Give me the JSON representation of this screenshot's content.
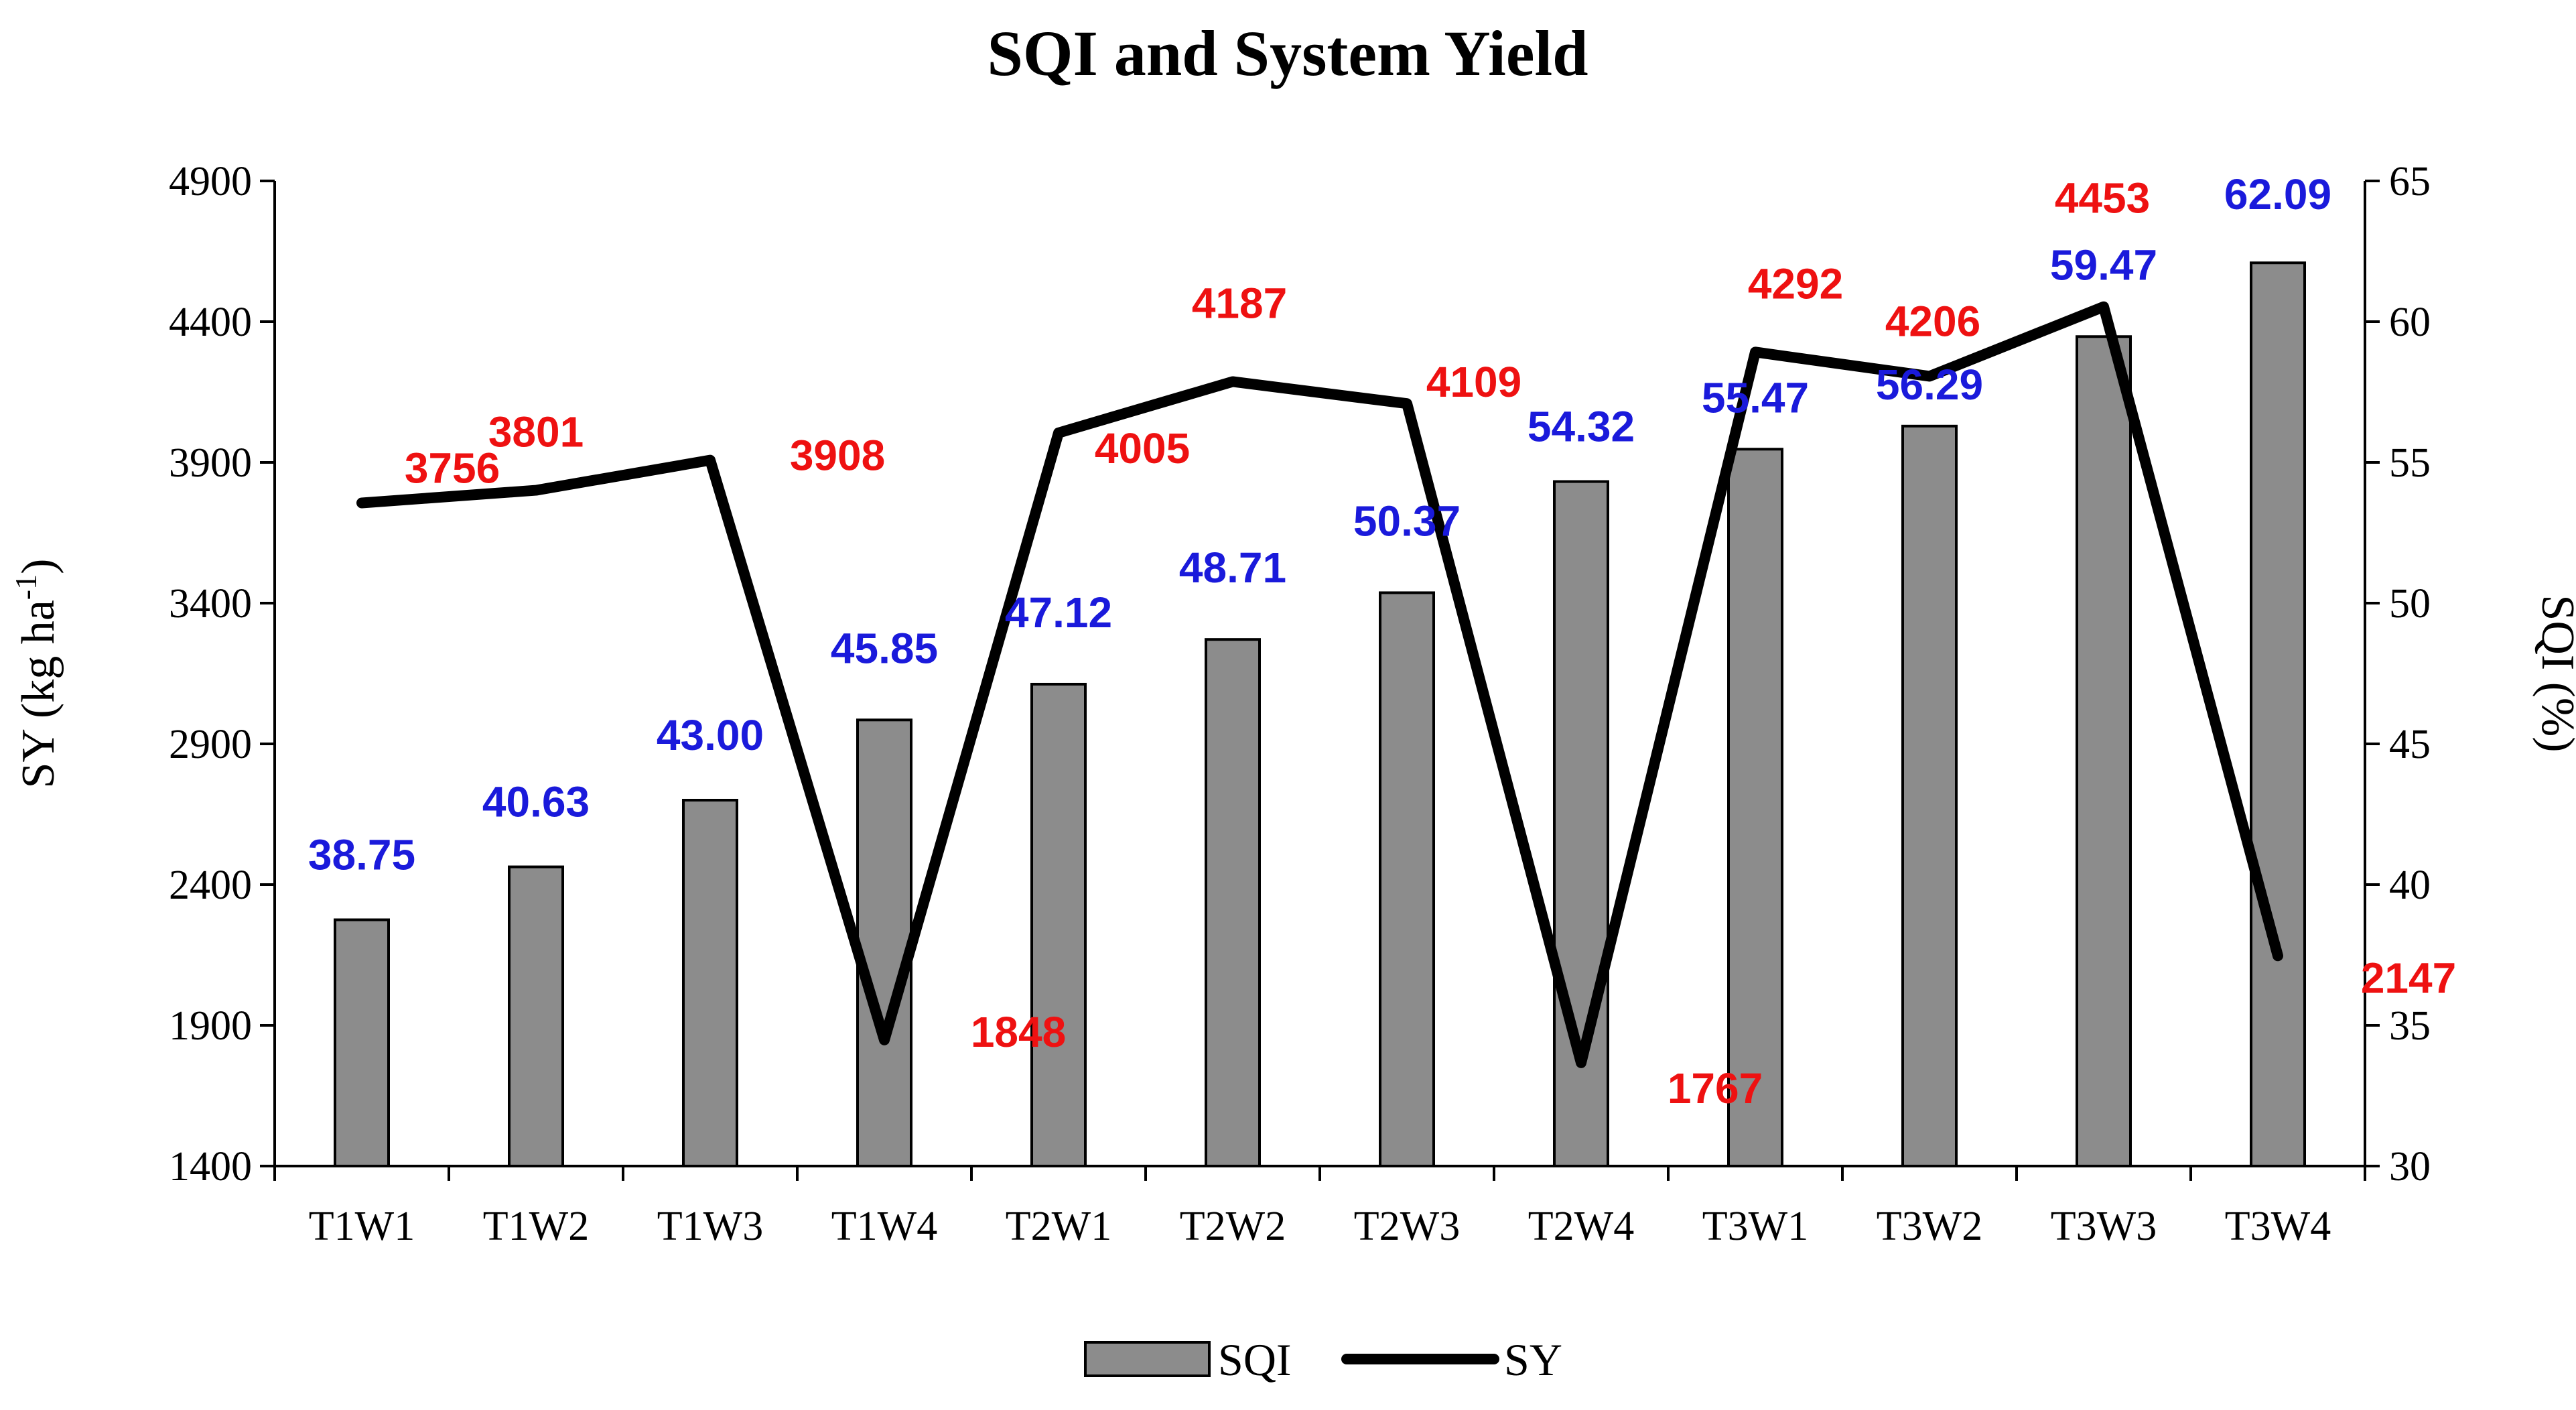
{
  "chart_data": {
    "type": "bar",
    "title": "SQI and System Yield",
    "categories": [
      "T1W1",
      "T1W2",
      "T1W3",
      "T1W4",
      "T2W1",
      "T2W2",
      "T2W3",
      "T2W4",
      "T3W1",
      "T3W2",
      "T3W3",
      "T3W4"
    ],
    "series": [
      {
        "name": "SQI",
        "type": "bar",
        "axis": "right",
        "values": [
          38.75,
          40.63,
          43.0,
          45.85,
          47.12,
          48.71,
          50.37,
          54.32,
          55.47,
          56.29,
          59.47,
          62.09
        ],
        "labels": [
          "38.75",
          "40.63",
          "43.00",
          "45.85",
          "47.12",
          "48.71",
          "50.37",
          "54.32",
          "55.47",
          "56.29",
          "59.47",
          "62.09"
        ],
        "color": "#8c8c8c",
        "label_color": "#1a1adb"
      },
      {
        "name": "SY",
        "type": "line",
        "axis": "left",
        "values": [
          3756,
          3801,
          3908,
          1848,
          4005,
          4187,
          4109,
          1767,
          4292,
          4206,
          4453,
          2147
        ],
        "labels": [
          "3756",
          "3801",
          "3908",
          "1848",
          "4005",
          "4187",
          "4109",
          "1767",
          "4292",
          "4206",
          "4453",
          "2147"
        ],
        "color": "#000000",
        "label_color": "#ee1111"
      }
    ],
    "y_left": {
      "label_main": "SY (kg ha",
      "label_sup": "-1",
      "label_end": ")",
      "lim": [
        1400,
        4900
      ],
      "ticks": [
        "1400",
        "1900",
        "2400",
        "2900",
        "3400",
        "3900",
        "4400",
        "4900"
      ]
    },
    "y_right": {
      "label": "SQI (%)",
      "lim": [
        30,
        65
      ],
      "ticks": [
        "30",
        "35",
        "40",
        "45",
        "50",
        "55",
        "60",
        "65"
      ]
    },
    "legend": {
      "position": "bottom-center",
      "items": [
        {
          "name": "SQI",
          "symbol": "bar"
        },
        {
          "name": "SY",
          "symbol": "line"
        }
      ]
    },
    "grid": false
  }
}
